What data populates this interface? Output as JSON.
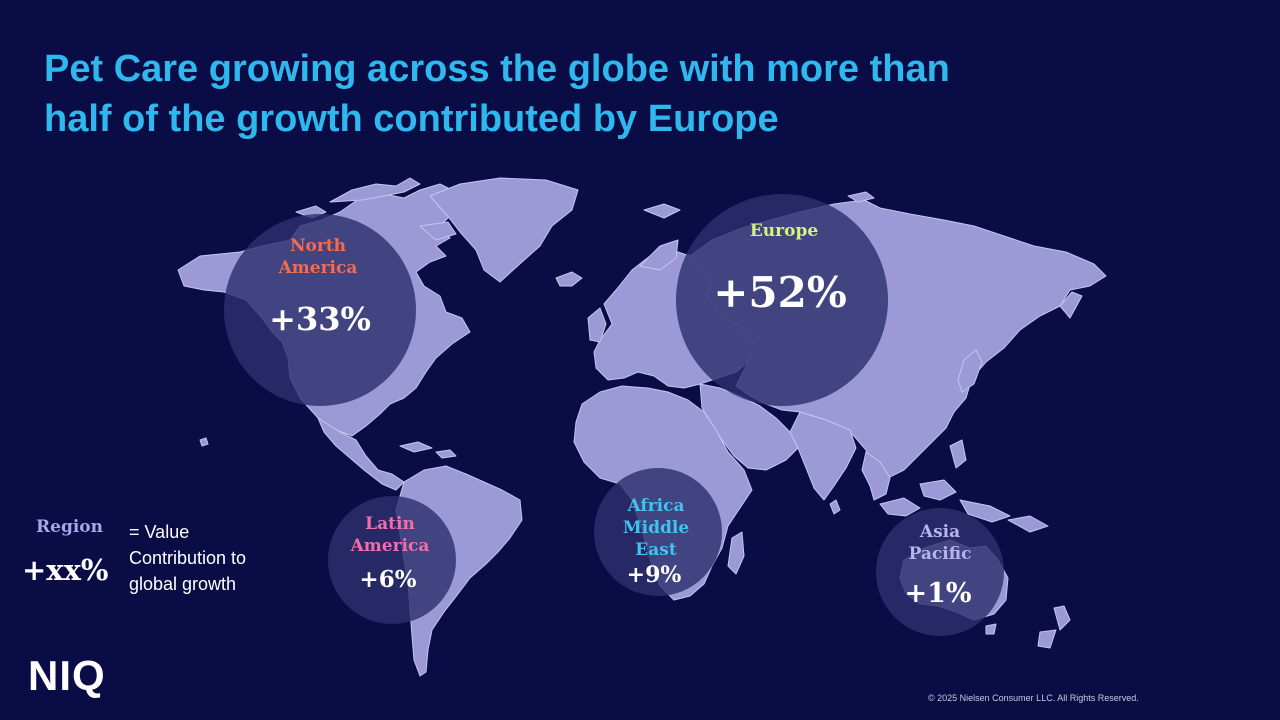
{
  "slide": {
    "title_line1": "Pet Care growing across the globe with more than",
    "title_line2": "half of the growth contributed by Europe",
    "copyright": "© 2025 Nielsen Consumer LLC. All Rights Reserved.",
    "logo_text": "NIQ"
  },
  "colors": {
    "background": "#0a0c45",
    "title": "#2fb8ee",
    "land": "#9c9ad6",
    "highlight_circle": "#2e2f6e",
    "north_america": "#f26d4f",
    "europe": "#d7f27a",
    "latin_america": "#ef6fa8",
    "africa_middle_east": "#3fc3f0",
    "asia_pacific": "#b6b3ef",
    "legend_region": "#a8a6e8"
  },
  "regions": [
    {
      "id": "north_america",
      "name_line1": "North",
      "name_line2": "America",
      "value": "+33%"
    },
    {
      "id": "europe",
      "name_line1": "Europe",
      "name_line2": "",
      "value": "+52%"
    },
    {
      "id": "latin_america",
      "name_line1": "Latin",
      "name_line2": "America",
      "value": "+6%"
    },
    {
      "id": "africa_middle_east",
      "name_line1": "Africa",
      "name_line2": "Middle",
      "name_line3": "East",
      "value": "+9%"
    },
    {
      "id": "asia_pacific",
      "name_line1": "Asia",
      "name_line2": "Pacific",
      "value": "+1%"
    }
  ],
  "legend": {
    "region": "Region",
    "value": "+xx%",
    "desc_line1": "= Value",
    "desc_line2": "Contribution to",
    "desc_line3": "global growth"
  }
}
